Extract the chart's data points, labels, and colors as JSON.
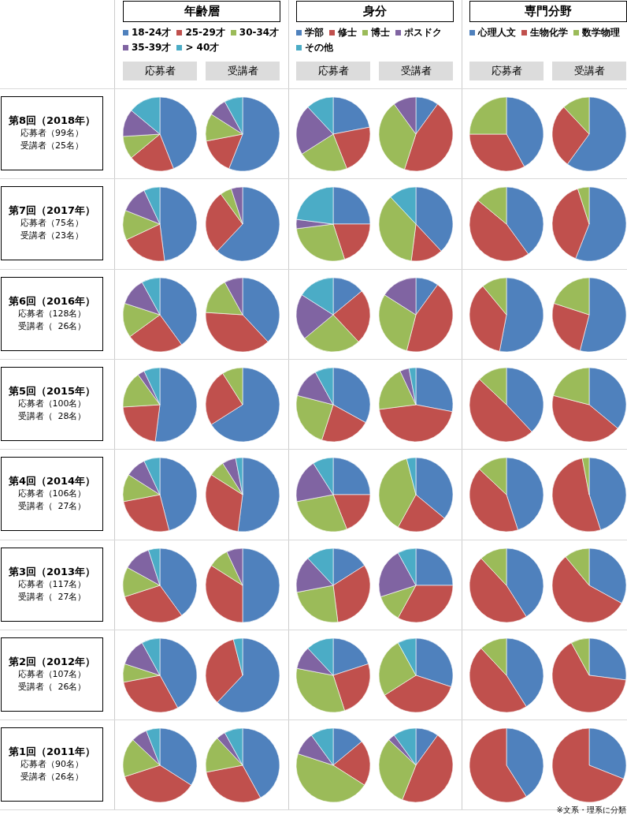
{
  "chart_data": [
    {
      "type": "other",
      "annotations": [
        "第8回（2018年）",
        "応募者（99名）",
        "受講者（25名）",
        "第7回（2017年）",
        "応募者（75名）",
        "受講者（23名）",
        "第6回（2016年）",
        "応募者（128名）",
        "受講者（  26名）",
        "第5回（2015年）",
        "応募者（100名）",
        "受講者（  28名）",
        "第4回（2014年）",
        "応募者（106名）",
        "受講者（  27名）",
        "第3回（2013年）",
        "応募者（117名）",
        "受講者（  27名）",
        "第2回（2012年）",
        "応募者（107名）",
        "受講者（  26名）",
        "第1回（2011年）",
        "応募者（90名）",
        "受講者（26名）"
      ]
    },
    {
      "type": "pie",
      "legend": "top",
      "legend_title": "年齢層",
      "categories": [
        "18-24才",
        "25-29才",
        "30-34才",
        "35-39才",
        "> 40才"
      ],
      "colors": [
        "#4f81bd",
        "#c0504d",
        "#9bbb59",
        "#8064a2",
        "#4bacc6"
      ],
      "series": [
        {
          "name": "応募者",
          "values": [
            44,
            20,
            10,
            12,
            14
          ]
        },
        {
          "name": "受講者",
          "values": [
            56,
            16,
            12,
            8,
            8
          ]
        },
        {
          "values": [
            48,
            20,
            13,
            12,
            7
          ]
        },
        {
          "values": [
            62,
            28,
            5,
            5,
            0
          ]
        },
        {
          "values": [
            40,
            25,
            15,
            12,
            8
          ]
        },
        {
          "values": [
            38,
            38,
            16,
            8,
            0
          ]
        },
        {
          "values": [
            52,
            22,
            16,
            3,
            7
          ]
        },
        {
          "values": [
            66,
            25,
            9,
            0,
            0
          ]
        },
        {
          "values": [
            46,
            26,
            12,
            9,
            7
          ]
        },
        {
          "values": [
            52,
            32,
            7,
            6,
            3
          ]
        },
        {
          "values": [
            40,
            30,
            13,
            12,
            5
          ]
        },
        {
          "values": [
            50,
            34,
            9,
            7,
            0
          ]
        },
        {
          "values": [
            42,
            30,
            8,
            12,
            8
          ]
        },
        {
          "values": [
            62,
            34,
            0,
            0,
            4
          ]
        },
        {
          "values": [
            34,
            36,
            17,
            7,
            6
          ]
        },
        {
          "values": [
            42,
            30,
            16,
            4,
            8
          ]
        }
      ]
    },
    {
      "type": "pie",
      "legend": "top",
      "legend_title": "身分",
      "categories": [
        "学部",
        "修士",
        "博士",
        "ポスドク",
        "その他"
      ],
      "colors": [
        "#4f81bd",
        "#c0504d",
        "#9bbb59",
        "#8064a2",
        "#4bacc6"
      ],
      "series": [
        {
          "name": "応募者",
          "values": [
            22,
            22,
            22,
            22,
            12
          ]
        },
        {
          "name": "受講者",
          "values": [
            10,
            45,
            35,
            10,
            0
          ]
        },
        {
          "values": [
            25,
            20,
            28,
            4,
            23
          ]
        },
        {
          "values": [
            38,
            14,
            36,
            0,
            12
          ]
        },
        {
          "values": [
            14,
            24,
            26,
            20,
            16
          ]
        },
        {
          "values": [
            10,
            44,
            30,
            16,
            0
          ]
        },
        {
          "values": [
            33,
            22,
            24,
            13,
            8
          ]
        },
        {
          "values": [
            28,
            45,
            20,
            4,
            3
          ]
        },
        {
          "values": [
            25,
            19,
            28,
            19,
            9
          ]
        },
        {
          "values": [
            36,
            22,
            38,
            0,
            4
          ]
        },
        {
          "values": [
            16,
            32,
            24,
            16,
            12
          ]
        },
        {
          "values": [
            25,
            33,
            12,
            22,
            8
          ]
        },
        {
          "values": [
            20,
            25,
            33,
            10,
            12
          ]
        },
        {
          "values": [
            30,
            36,
            26,
            0,
            8
          ]
        },
        {
          "values": [
            14,
            20,
            46,
            10,
            10
          ]
        },
        {
          "values": [
            10,
            46,
            31,
            3,
            10
          ]
        }
      ]
    },
    {
      "type": "pie",
      "legend": "top",
      "legend_title": "専門分野",
      "annotations": [
        "※文系・理系に分類"
      ],
      "categories": [
        "心理人文",
        "生物化学",
        "数学物理"
      ],
      "colors": [
        "#4f81bd",
        "#c0504d",
        "#9bbb59"
      ],
      "series": [
        {
          "name": "応募者",
          "values": [
            42,
            33,
            25
          ]
        },
        {
          "name": "受講者",
          "values": [
            60,
            28,
            12
          ]
        },
        {
          "values": [
            40,
            46,
            14
          ]
        },
        {
          "values": [
            56,
            39,
            5
          ]
        },
        {
          "values": [
            53,
            36,
            11
          ]
        },
        {
          "values": [
            54,
            26,
            20
          ]
        },
        {
          "values": [
            38,
            49,
            13
          ]
        },
        {
          "values": [
            36,
            43,
            21
          ]
        },
        {
          "values": [
            45,
            42,
            13
          ]
        },
        {
          "values": [
            45,
            52,
            3
          ]
        },
        {
          "values": [
            41,
            47,
            12
          ]
        },
        {
          "values": [
            33,
            56,
            11
          ]
        },
        {
          "values": [
            41,
            47,
            12
          ]
        },
        {
          "values": [
            27,
            65,
            8
          ]
        },
        {
          "values": [
            41,
            59,
            0
          ]
        },
        {
          "values": [
            31,
            69,
            0
          ]
        }
      ]
    }
  ]
}
